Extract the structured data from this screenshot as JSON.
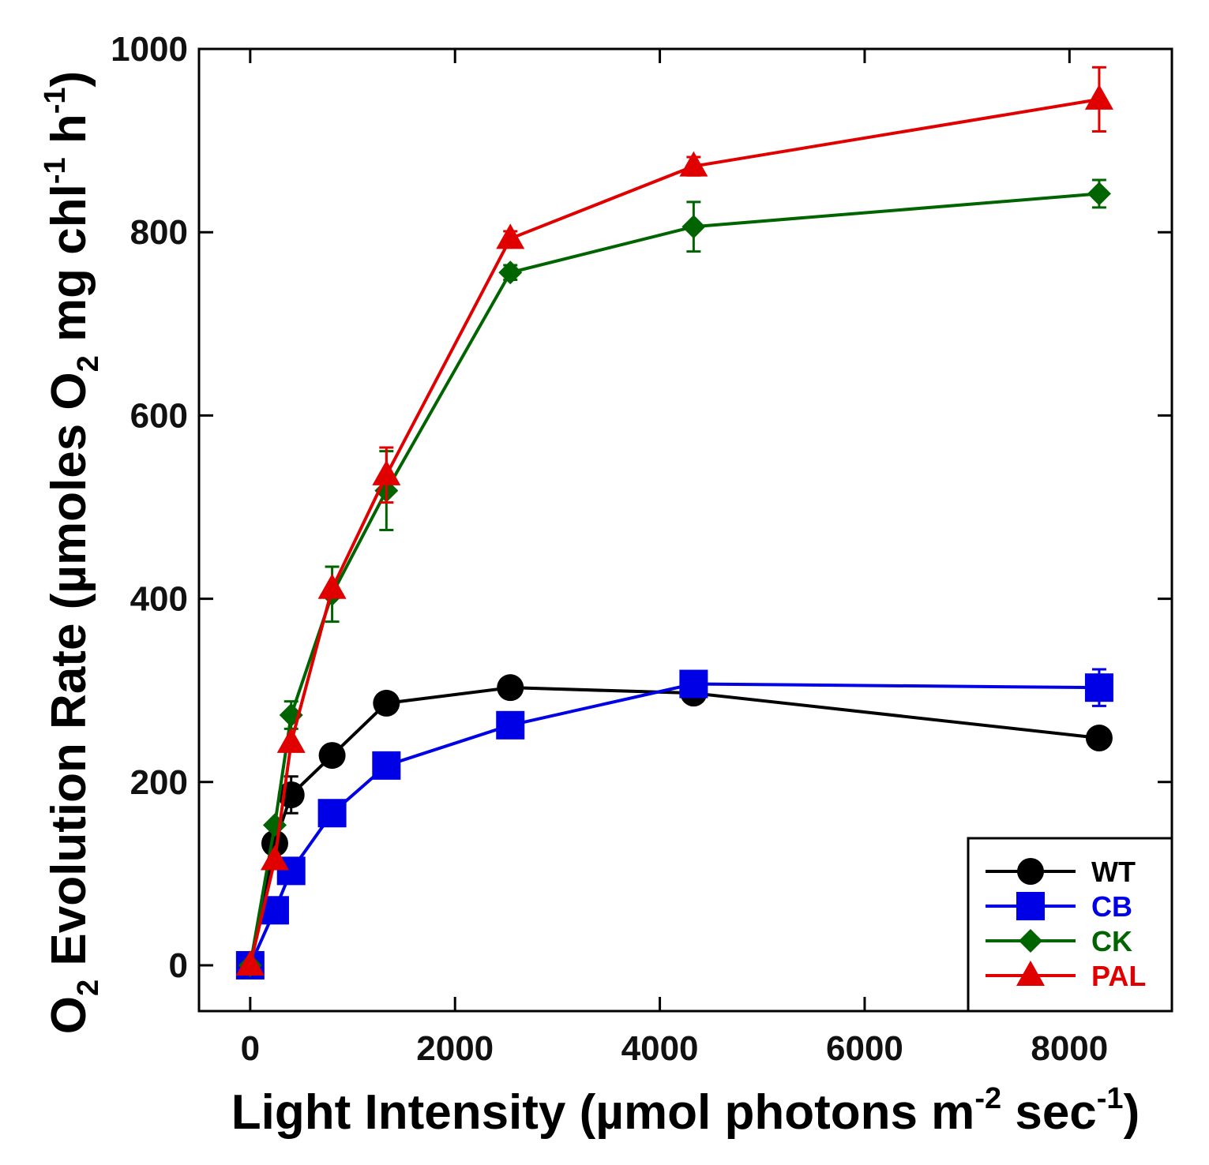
{
  "chart_data": {
    "type": "line",
    "title": "",
    "xlabel": "Light Intensity (µmol photons m-2 sec-1)",
    "xlabel_parts": {
      "main": "Light Intensity (µmol photons m",
      "sup1": "-2",
      "mid": " sec",
      "sup2": "-1",
      "end": ")"
    },
    "ylabel": "O2 Evolution Rate (µmoles O2 mg chl-1 h-1)",
    "ylabel_parts": {
      "p1": "O",
      "sub1": "2",
      "p2": " Evolution Rate (µmoles O",
      "sub2": "2",
      "p3": " mg chl",
      "sup1": "-1",
      "p4": " h",
      "sup2": "-1",
      "p5": ")"
    },
    "xlim": [
      -500,
      9000
    ],
    "ylim": [
      -50,
      1000
    ],
    "xticks": [
      0,
      2000,
      4000,
      6000,
      8000
    ],
    "xtick_labels": [
      "0",
      "2000",
      "4000",
      "6000",
      "8000"
    ],
    "yticks": [
      0,
      200,
      400,
      600,
      800,
      1000
    ],
    "ytick_labels": [
      "0",
      "200",
      "400",
      "600",
      "800",
      "1000"
    ],
    "legend_position": "bottom-right",
    "series": [
      {
        "name": "WT",
        "color": "#000000",
        "marker": "circle",
        "points": [
          {
            "x": 0,
            "y": 0,
            "err": 0
          },
          {
            "x": 240,
            "y": 133,
            "err": 0
          },
          {
            "x": 400,
            "y": 186,
            "err": 20
          },
          {
            "x": 800,
            "y": 229,
            "err": 0
          },
          {
            "x": 1330,
            "y": 286,
            "err": 0
          },
          {
            "x": 2540,
            "y": 303,
            "err": 0
          },
          {
            "x": 4330,
            "y": 297,
            "err": 0
          },
          {
            "x": 8290,
            "y": 248,
            "err": 0
          }
        ]
      },
      {
        "name": "CB",
        "color": "#0000e6",
        "marker": "square",
        "points": [
          {
            "x": 0,
            "y": 0,
            "err": 0
          },
          {
            "x": 240,
            "y": 60,
            "err": 0
          },
          {
            "x": 400,
            "y": 103,
            "err": 0
          },
          {
            "x": 800,
            "y": 166,
            "err": 0
          },
          {
            "x": 1330,
            "y": 218,
            "err": 0
          },
          {
            "x": 2540,
            "y": 262,
            "err": 0
          },
          {
            "x": 4330,
            "y": 307,
            "err": 0
          },
          {
            "x": 8290,
            "y": 303,
            "err": 20
          }
        ]
      },
      {
        "name": "CK",
        "color": "#006400",
        "marker": "diamond",
        "points": [
          {
            "x": 0,
            "y": 0,
            "err": 0
          },
          {
            "x": 240,
            "y": 153,
            "err": 0
          },
          {
            "x": 400,
            "y": 273,
            "err": 15
          },
          {
            "x": 800,
            "y": 405,
            "err": 30
          },
          {
            "x": 1330,
            "y": 518,
            "err": 43
          },
          {
            "x": 2540,
            "y": 756,
            "err": 8
          },
          {
            "x": 4330,
            "y": 806,
            "err": 27
          },
          {
            "x": 8290,
            "y": 842,
            "err": 15
          }
        ]
      },
      {
        "name": "PAL",
        "color": "#e00000",
        "marker": "triangle",
        "points": [
          {
            "x": 0,
            "y": 0,
            "err": 0
          },
          {
            "x": 240,
            "y": 115,
            "err": 0
          },
          {
            "x": 400,
            "y": 243,
            "err": 0
          },
          {
            "x": 800,
            "y": 411,
            "err": 0
          },
          {
            "x": 1330,
            "y": 535,
            "err": 30
          },
          {
            "x": 2540,
            "y": 793,
            "err": 8
          },
          {
            "x": 4330,
            "y": 872,
            "err": 10
          },
          {
            "x": 8290,
            "y": 945,
            "err": 35
          }
        ]
      }
    ]
  }
}
